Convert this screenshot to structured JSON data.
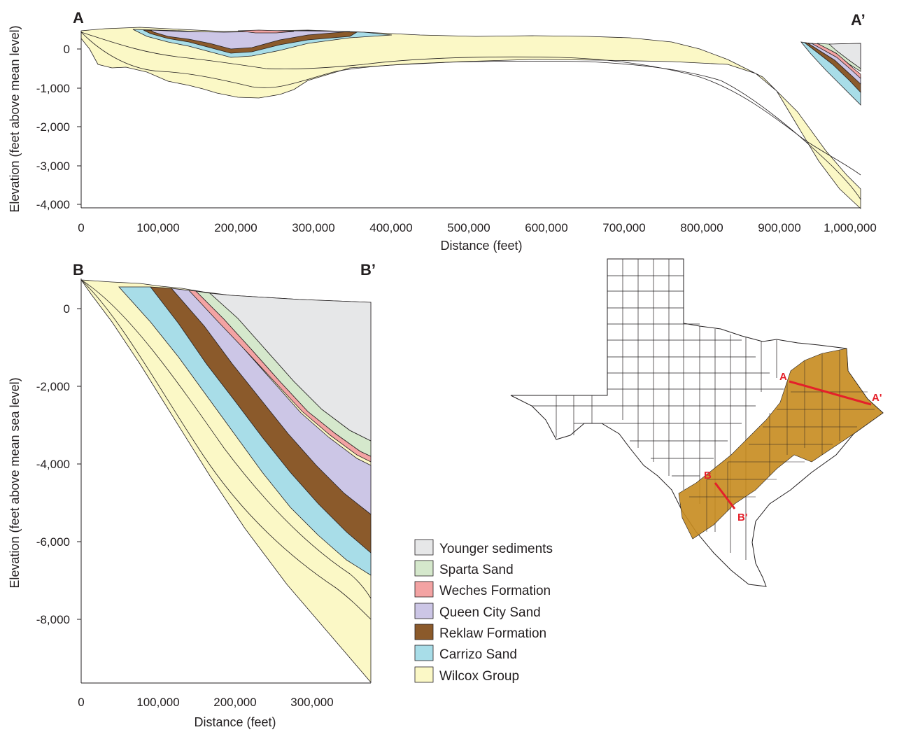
{
  "section_a": {
    "label_left": "A",
    "label_right": "A’",
    "y_label": "Elevation (feet above mean level)",
    "x_label": "Distance (feet)",
    "y_ticks": [
      "0",
      "-1,000",
      "-2,000",
      "-3,000",
      "-4,000"
    ],
    "x_ticks": [
      "0",
      "100,000",
      "200,000",
      "300,000",
      "400,000",
      "500,000",
      "600,000",
      "700,000",
      "800,000",
      "900,000",
      "1,000,000"
    ]
  },
  "section_b": {
    "label_left": "B",
    "label_right": "B’",
    "y_label": "Elevation (feet above mean sea level)",
    "x_label": "Distance (feet)",
    "y_ticks": [
      "0",
      "-2,000",
      "-4,000",
      "-6,000",
      "-8,000"
    ],
    "x_ticks": [
      "0",
      "100,000",
      "200,000",
      "300,000"
    ]
  },
  "legend": [
    {
      "label": "Younger sediments",
      "color": "#e6e7e8"
    },
    {
      "label": "Sparta Sand",
      "color": "#d5e8cc"
    },
    {
      "label": "Weches Formation",
      "color": "#f3a3a3"
    },
    {
      "label": "Queen City Sand",
      "color": "#ccc6e6"
    },
    {
      "label": "Reklaw Formation",
      "color": "#8b5a2b"
    },
    {
      "label": "Carrizo Sand",
      "color": "#a8dde8"
    },
    {
      "label": "Wilcox Group",
      "color": "#fbf8c6"
    }
  ],
  "map": {
    "label_a": "A",
    "label_a_prime": "A'",
    "label_b": "B",
    "label_b_prime": "B'",
    "aquifer_color": "#c68b1e",
    "line_color": "#e4202a"
  }
}
